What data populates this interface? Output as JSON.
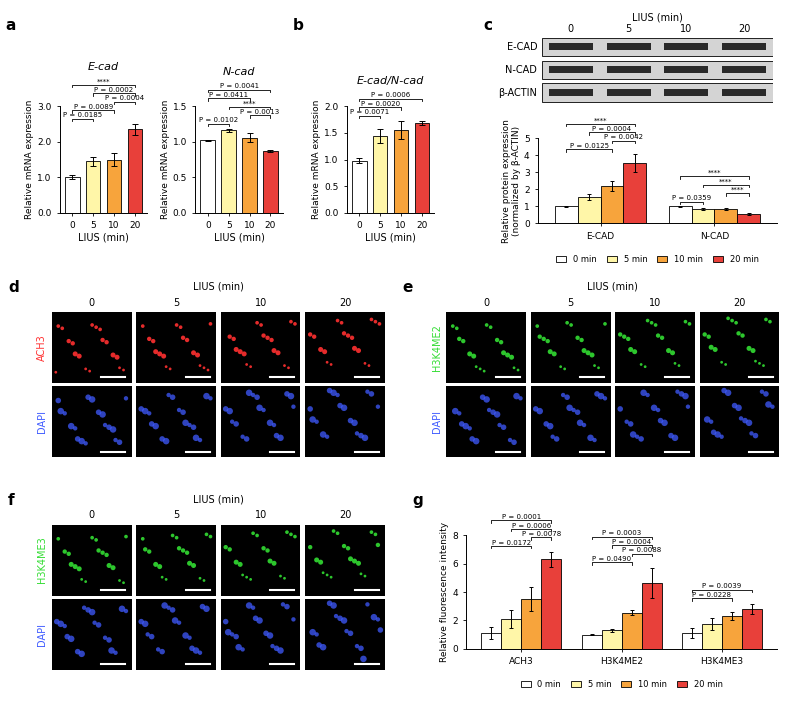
{
  "chart_data": [
    {
      "panel": "a",
      "type": "bar",
      "title": "E-cad",
      "x_label": "LIUS (min)",
      "y_label": "Relative mRNA expression",
      "categories": [
        "0",
        "5",
        "10",
        "20"
      ],
      "values": [
        1.0,
        1.45,
        1.5,
        2.35
      ],
      "errors": [
        0.05,
        0.12,
        0.17,
        0.15
      ],
      "colors": [
        "#ffffff",
        "#fff6a8",
        "#f7a43c",
        "#e8403a"
      ],
      "ylim": [
        0,
        3.0
      ],
      "yticks": [
        {
          "value": 0,
          "label": "0.0"
        },
        {
          "value": 1.0,
          "label": "1.0"
        },
        {
          "value": 2.0,
          "label": "2.0"
        },
        {
          "value": 3.0,
          "label": "3.0"
        }
      ],
      "comparisons": [
        {
          "from": "0",
          "to": "5",
          "label": "P = 0.0185"
        },
        {
          "from": "0",
          "to": "10",
          "label": "P = 0.0089"
        },
        {
          "from": "10",
          "to": "20",
          "label": "P = 0.0004"
        },
        {
          "from": "5",
          "to": "20",
          "label": "P = 0.0002"
        },
        {
          "from": "0",
          "to": "20",
          "label": "****"
        }
      ]
    },
    {
      "type": "bar",
      "title": "N-cad",
      "x_label": "LIUS (min)",
      "y_label": "Relative mRNA expression",
      "categories": [
        "0",
        "5",
        "10",
        "20"
      ],
      "values": [
        1.02,
        1.16,
        1.06,
        0.87
      ],
      "errors": [
        0.01,
        0.02,
        0.06,
        0.01
      ],
      "colors": [
        "#ffffff",
        "#fff6a8",
        "#f7a43c",
        "#e8403a"
      ],
      "ylim": [
        0,
        1.5
      ],
      "yticks": [
        {
          "value": 0,
          "label": "0.0"
        },
        {
          "value": 0.5,
          "label": "0.5"
        },
        {
          "value": 1.0,
          "label": "1.0"
        },
        {
          "value": 1.5,
          "label": "1.5"
        }
      ],
      "comparisons": [
        {
          "from": "0",
          "to": "5",
          "label": "P = 0.0102"
        },
        {
          "from": "10",
          "to": "20",
          "label": "P = 0.0013"
        },
        {
          "from": "5",
          "to": "20",
          "label": "****"
        },
        {
          "from": "0",
          "to": "10",
          "label": "P = 0.0411"
        },
        {
          "from": "0",
          "to": "20",
          "label": "P = 0.0041"
        }
      ]
    },
    {
      "panel": "b",
      "type": "bar",
      "title": "E-cad/N-cad",
      "x_label": "LIUS (min)",
      "y_label": "Relative mRNA expression",
      "categories": [
        "0",
        "5",
        "10",
        "20"
      ],
      "values": [
        0.98,
        1.45,
        1.55,
        1.68
      ],
      "errors": [
        0.04,
        0.13,
        0.17,
        0.04
      ],
      "colors": [
        "#ffffff",
        "#fff6a8",
        "#f7a43c",
        "#e8403a"
      ],
      "ylim": [
        0,
        2.0
      ],
      "yticks": [
        {
          "value": 0,
          "label": "0.0"
        },
        {
          "value": 0.5,
          "label": "0.5"
        },
        {
          "value": 1.0,
          "label": "1.0"
        },
        {
          "value": 1.5,
          "label": "1.5"
        },
        {
          "value": 2.0,
          "label": "2.0"
        }
      ],
      "comparisons": [
        {
          "from": "0",
          "to": "5",
          "label": "P = 0.0071"
        },
        {
          "from": "0",
          "to": "10",
          "label": "P = 0.0020"
        },
        {
          "from": "0",
          "to": "20",
          "label": "P = 0.0006"
        }
      ]
    },
    {
      "panel": "c",
      "type": "bar",
      "y_label": "Relative protein expression\n(normalized by β-ACTIN)",
      "categories": [
        "E-CAD",
        "N-CAD"
      ],
      "legend": "bottom",
      "ylim": [
        0,
        5
      ],
      "yticks": [
        0,
        1,
        2,
        3,
        4,
        5
      ],
      "series": [
        {
          "name": "0 min",
          "color": "#ffffff",
          "values": [
            1.0,
            1.0
          ],
          "errors": [
            0.02,
            0.02
          ]
        },
        {
          "name": "5 min",
          "color": "#fff6a8",
          "values": [
            1.55,
            0.85
          ],
          "errors": [
            0.15,
            0.08
          ]
        },
        {
          "name": "10 min",
          "color": "#f7a43c",
          "values": [
            2.2,
            0.85
          ],
          "errors": [
            0.3,
            0.04
          ]
        },
        {
          "name": "20 min",
          "color": "#e8403a",
          "values": [
            3.55,
            0.55
          ],
          "errors": [
            0.55,
            0.05
          ]
        }
      ],
      "comparisons": [
        {
          "category": "E-CAD",
          "from": "0 min",
          "to": "10 min",
          "label": "P = 0.0125"
        },
        {
          "category": "E-CAD",
          "from": "10 min",
          "to": "20 min",
          "label": "P = 0.0042"
        },
        {
          "category": "E-CAD",
          "from": "5 min",
          "to": "20 min",
          "label": "P = 0.0004"
        },
        {
          "category": "E-CAD",
          "from": "0 min",
          "to": "20 min",
          "label": "****"
        },
        {
          "category": "N-CAD",
          "from": "0 min",
          "to": "5 min",
          "label": "P = 0.0359"
        },
        {
          "category": "N-CAD",
          "from": "10 min",
          "to": "20 min",
          "label": "****"
        },
        {
          "category": "N-CAD",
          "from": "5 min",
          "to": "20 min",
          "label": "****"
        },
        {
          "category": "N-CAD",
          "from": "0 min",
          "to": "20 min",
          "label": "****"
        }
      ]
    },
    {
      "panel": "g",
      "type": "bar",
      "y_label": "Relative fluorescence intensity",
      "categories": [
        "ACH3",
        "H3K4ME2",
        "H3K4ME3"
      ],
      "legend": "bottom",
      "ylim": [
        0,
        8
      ],
      "yticks": [
        0,
        2,
        4,
        6,
        8
      ],
      "series": [
        {
          "name": "0 min",
          "color": "#ffffff",
          "values": [
            1.1,
            1.0,
            1.1
          ],
          "errors": [
            0.4,
            0.05,
            0.35
          ]
        },
        {
          "name": "5 min",
          "color": "#fff6a8",
          "values": [
            2.1,
            1.3,
            1.75
          ],
          "errors": [
            0.65,
            0.1,
            0.45
          ]
        },
        {
          "name": "10 min",
          "color": "#f7a43c",
          "values": [
            3.5,
            2.55,
            2.3
          ],
          "errors": [
            0.85,
            0.2,
            0.3
          ]
        },
        {
          "name": "20 min",
          "color": "#e8403a",
          "values": [
            6.3,
            4.65,
            2.8
          ],
          "errors": [
            0.55,
            1.05,
            0.35
          ]
        }
      ],
      "comparisons": [
        {
          "category": "ACH3",
          "from": "0 min",
          "to": "10 min",
          "label": "P = 0.0172"
        },
        {
          "category": "ACH3",
          "from": "10 min",
          "to": "20 min",
          "label": "P = 0.0078"
        },
        {
          "category": "ACH3",
          "from": "5 min",
          "to": "20 min",
          "label": "P = 0.0006"
        },
        {
          "category": "ACH3",
          "from": "0 min",
          "to": "20 min",
          "label": "P = 0.0001"
        },
        {
          "category": "H3K4ME2",
          "from": "0 min",
          "to": "10 min",
          "label": "P = 0.0490"
        },
        {
          "category": "H3K4ME2",
          "from": "10 min",
          "to": "20 min",
          "label": "P = 0.0088"
        },
        {
          "category": "H3K4ME2",
          "from": "5 min",
          "to": "20 min",
          "label": "P = 0.0004"
        },
        {
          "category": "H3K4ME2",
          "from": "0 min",
          "to": "20 min",
          "label": "P = 0.0003"
        },
        {
          "category": "H3K4ME3",
          "from": "0 min",
          "to": "10 min",
          "label": "P = 0.0228"
        },
        {
          "category": "H3K4ME3",
          "from": "0 min",
          "to": "20 min",
          "label": "P = 0.0039"
        }
      ]
    }
  ],
  "blot": {
    "title": "LIUS (min)",
    "columns": [
      "0",
      "5",
      "10",
      "20"
    ],
    "rows": [
      "E-CAD",
      "N-CAD",
      "β-ACTIN"
    ]
  },
  "microscopy": [
    {
      "panel": "d",
      "title": "LIUS (min)",
      "columns": [
        "0",
        "5",
        "10",
        "20"
      ],
      "rows": [
        {
          "label": "ACH3",
          "color": "#ff3030"
        },
        {
          "label": "DAPI",
          "color": "#3f5bff"
        }
      ]
    },
    {
      "panel": "e",
      "title": "LIUS (min)",
      "columns": [
        "0",
        "5",
        "10",
        "20"
      ],
      "rows": [
        {
          "label": "H3K4ME2",
          "color": "#33dd33"
        },
        {
          "label": "DAPI",
          "color": "#3f5bff"
        }
      ]
    },
    {
      "panel": "f",
      "title": "LIUS (min)",
      "columns": [
        "0",
        "5",
        "10",
        "20"
      ],
      "rows": [
        {
          "label": "H3K4ME3",
          "color": "#33dd33"
        },
        {
          "label": "DAPI",
          "color": "#3f5bff"
        }
      ]
    }
  ]
}
